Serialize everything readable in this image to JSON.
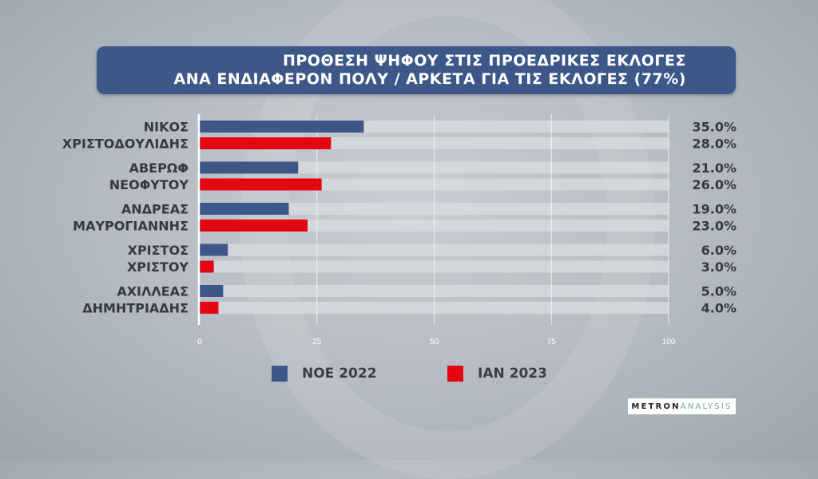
{
  "title": {
    "line1": "ΠΡΟΘΕΣΗ ΨΗΦΟΥ ΣΤΙΣ ΠΡΟΕΔΡΙΚΕΣ ΕΚΛΟΓΕΣ",
    "line2": "ΑΝΑ ΕΝΔΙΑΦΕΡΟΝ ΠΟΛΥ / ΑΡΚΕΤΑ ΓΙΑ ΤΙΣ ΕΚΛΟΓΕΣ (77%)"
  },
  "logo": {
    "part1": "METRON",
    "part2": "ANALYSIS"
  },
  "chart_data": {
    "type": "bar",
    "orientation": "horizontal",
    "categories": [
      [
        "ΝΙΚΟΣ",
        "ΧΡΙΣΤΟΔΟΥΛΙΔΗΣ"
      ],
      [
        "ΑΒΕΡΩΦ",
        "ΝΕΟΦΥΤΟΥ"
      ],
      [
        "ΑΝΔΡΕΑΣ",
        "ΜΑΥΡΟΓΙΑΝΝΗΣ"
      ],
      [
        "ΧΡΙΣΤΟΣ",
        "ΧΡΙΣΤΟΥ"
      ],
      [
        "ΑΧΙΛΛΕΑΣ",
        "ΔΗΜΗΤΡΙΑΔΗΣ"
      ]
    ],
    "series": [
      {
        "name": "ΝΟΕ 2022",
        "color": "#3e5789",
        "values": [
          35.0,
          21.0,
          19.0,
          6.0,
          5.0
        ],
        "labels": [
          "35.0%",
          "21.0%",
          "19.0%",
          "6.0%",
          "5.0%"
        ]
      },
      {
        "name": "ΙΑΝ 2023",
        "color": "#e30613",
        "values": [
          28.0,
          26.0,
          23.0,
          3.0,
          4.0
        ],
        "labels": [
          "28.0%",
          "26.0%",
          "23.0%",
          "3.0%",
          "4.0%"
        ]
      }
    ],
    "xlim": [
      0,
      100
    ],
    "xticks": [
      0,
      25,
      50,
      75,
      100
    ],
    "xtick_labels": [
      "0",
      "25",
      "50",
      "75",
      "100"
    ],
    "grid": true,
    "legend_position": "bottom"
  }
}
